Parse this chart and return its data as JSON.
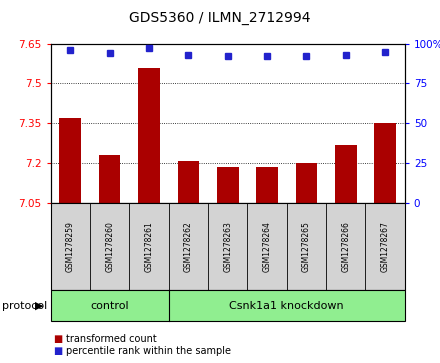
{
  "title": "GDS5360 / ILMN_2712994",
  "categories": [
    "GSM1278259",
    "GSM1278260",
    "GSM1278261",
    "GSM1278262",
    "GSM1278263",
    "GSM1278264",
    "GSM1278265",
    "GSM1278266",
    "GSM1278267"
  ],
  "bar_values": [
    7.37,
    7.23,
    7.56,
    7.21,
    7.185,
    7.188,
    7.2,
    7.27,
    7.35
  ],
  "blue_values": [
    96,
    94,
    97,
    93,
    92,
    92,
    92,
    93,
    95
  ],
  "ylim_left": [
    7.05,
    7.65
  ],
  "ylim_right": [
    0,
    100
  ],
  "yticks_left": [
    7.05,
    7.2,
    7.35,
    7.5,
    7.65
  ],
  "yticks_right": [
    0,
    25,
    50,
    75,
    100
  ],
  "ytick_labels_left": [
    "7.05",
    "7.2",
    "7.35",
    "7.5",
    "7.65"
  ],
  "ytick_labels_right": [
    "0",
    "25",
    "50",
    "75",
    "100%"
  ],
  "bar_color": "#AA0000",
  "blue_color": "#2222CC",
  "plot_bg": "#FFFFFF",
  "control_samples": 3,
  "control_label": "control",
  "knockdown_label": "Csnk1a1 knockdown",
  "protocol_label": "protocol",
  "legend_bar_label": "transformed count",
  "legend_dot_label": "percentile rank within the sample",
  "label_area_bg": "#90EE90",
  "tick_area_bg": "#D3D3D3",
  "base_value": 7.05
}
